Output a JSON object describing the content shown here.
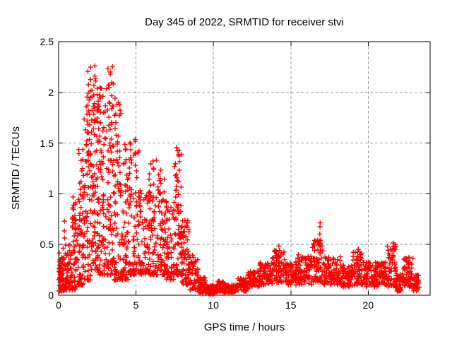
{
  "chart_data": {
    "type": "scatter",
    "title": "Day 345 of 2022, SRMTID for receiver stvi",
    "xlabel": "GPS time / hours",
    "ylabel": "SRMTID / TECUs",
    "xlim": [
      0,
      24
    ],
    "ylim": [
      0,
      2.5
    ],
    "xtick_values": [
      0,
      5,
      10,
      15,
      20
    ],
    "xtick_labels": [
      "0",
      "5",
      "10",
      "15",
      "20"
    ],
    "ytick_values": [
      0,
      0.5,
      1,
      1.5,
      2,
      2.5
    ],
    "ytick_labels": [
      "0",
      "0.5",
      "1",
      "1.5",
      "2",
      "2.5"
    ],
    "grid": true,
    "legend": "none",
    "marker": "+",
    "marker_color": "#ff0000",
    "grid_color": "#969696",
    "frame_color": "#000000",
    "background_color": "#ffffff",
    "series_name": "SRMTID",
    "data_end_hour": 23.3,
    "peak_value": 2.25,
    "peak_hour": 2.2,
    "segments": [
      {
        "x0": 0.0,
        "x1": 0.35,
        "lo": 0.04,
        "hi": 0.42,
        "n": 50,
        "skew": 1.6
      },
      {
        "x0": 0.05,
        "x1": 0.25,
        "lo": 0.12,
        "hi": 0.32,
        "n": 15,
        "skew": 1.0
      },
      {
        "x0": 0.35,
        "x1": 0.85,
        "lo": 0.05,
        "hi": 0.5,
        "n": 55,
        "skew": 1.6
      },
      {
        "x0": 0.85,
        "x1": 1.25,
        "lo": 0.05,
        "hi": 0.95,
        "n": 55,
        "skew": 1.8
      },
      {
        "x0": 1.25,
        "x1": 1.65,
        "lo": 0.1,
        "hi": 1.45,
        "n": 55,
        "skew": 1.9
      },
      {
        "x0": 1.65,
        "x1": 2.05,
        "lo": 0.15,
        "hi": 2.1,
        "n": 60,
        "skew": 2.2
      },
      {
        "x0": 2.05,
        "x1": 2.55,
        "lo": 0.25,
        "hi": 2.25,
        "n": 75,
        "skew": 1.9
      },
      {
        "x0": 2.55,
        "x1": 3.05,
        "lo": 0.2,
        "hi": 2.05,
        "n": 70,
        "skew": 2.0
      },
      {
        "x0": 3.05,
        "x1": 3.55,
        "lo": 0.2,
        "hi": 2.25,
        "n": 70,
        "skew": 2.1
      },
      {
        "x0": 3.55,
        "x1": 4.05,
        "lo": 0.15,
        "hi": 1.9,
        "n": 65,
        "skew": 2.1
      },
      {
        "x0": 4.05,
        "x1": 4.6,
        "lo": 0.15,
        "hi": 1.5,
        "n": 65,
        "skew": 1.9
      },
      {
        "x0": 4.6,
        "x1": 5.2,
        "lo": 0.2,
        "hi": 1.52,
        "n": 65,
        "skew": 2.0
      },
      {
        "x0": 5.2,
        "x1": 5.8,
        "lo": 0.2,
        "hi": 1.05,
        "n": 60,
        "skew": 1.7
      },
      {
        "x0": 5.8,
        "x1": 6.35,
        "lo": 0.2,
        "hi": 1.35,
        "n": 60,
        "skew": 1.9
      },
      {
        "x0": 6.35,
        "x1": 6.9,
        "lo": 0.2,
        "hi": 1.25,
        "n": 60,
        "skew": 1.8
      },
      {
        "x0": 6.9,
        "x1": 7.45,
        "lo": 0.15,
        "hi": 0.95,
        "n": 60,
        "skew": 1.6
      },
      {
        "x0": 7.45,
        "x1": 7.95,
        "lo": 0.2,
        "hi": 1.45,
        "n": 65,
        "skew": 1.9
      },
      {
        "x0": 7.95,
        "x1": 8.45,
        "lo": 0.1,
        "hi": 0.75,
        "n": 60,
        "skew": 1.5
      },
      {
        "x0": 8.45,
        "x1": 9.0,
        "lo": 0.05,
        "hi": 0.4,
        "n": 55,
        "skew": 1.4
      },
      {
        "x0": 9.0,
        "x1": 9.6,
        "lo": 0.02,
        "hi": 0.18,
        "n": 55,
        "skew": 1.2
      },
      {
        "x0": 9.6,
        "x1": 10.2,
        "lo": 0.01,
        "hi": 0.1,
        "n": 55,
        "skew": 1.0
      },
      {
        "x0": 10.2,
        "x1": 10.7,
        "lo": 0.03,
        "hi": 0.14,
        "n": 50,
        "skew": 1.0
      },
      {
        "x0": 10.7,
        "x1": 11.5,
        "lo": 0.02,
        "hi": 0.1,
        "n": 65,
        "skew": 1.0
      },
      {
        "x0": 11.5,
        "x1": 12.2,
        "lo": 0.04,
        "hi": 0.17,
        "n": 60,
        "skew": 1.0
      },
      {
        "x0": 12.2,
        "x1": 13.0,
        "lo": 0.07,
        "hi": 0.24,
        "n": 65,
        "skew": 1.0
      },
      {
        "x0": 13.0,
        "x1": 13.8,
        "lo": 0.1,
        "hi": 0.33,
        "n": 70,
        "skew": 1.1
      },
      {
        "x0": 13.8,
        "x1": 14.6,
        "lo": 0.12,
        "hi": 0.45,
        "n": 70,
        "skew": 1.2
      },
      {
        "x0": 14.6,
        "x1": 15.4,
        "lo": 0.1,
        "hi": 0.33,
        "n": 70,
        "skew": 1.1
      },
      {
        "x0": 15.4,
        "x1": 16.4,
        "lo": 0.1,
        "hi": 0.4,
        "n": 85,
        "skew": 1.2
      },
      {
        "x0": 16.4,
        "x1": 17.1,
        "lo": 0.12,
        "hi": 0.55,
        "n": 65,
        "skew": 1.4
      },
      {
        "x0": 17.1,
        "x1": 18.2,
        "lo": 0.1,
        "hi": 0.38,
        "n": 90,
        "skew": 1.2
      },
      {
        "x0": 18.2,
        "x1": 19.0,
        "lo": 0.08,
        "hi": 0.3,
        "n": 70,
        "skew": 1.1
      },
      {
        "x0": 19.0,
        "x1": 19.6,
        "lo": 0.1,
        "hi": 0.45,
        "n": 55,
        "skew": 1.3
      },
      {
        "x0": 19.6,
        "x1": 20.6,
        "lo": 0.08,
        "hi": 0.33,
        "n": 85,
        "skew": 1.1
      },
      {
        "x0": 20.6,
        "x1": 21.2,
        "lo": 0.1,
        "hi": 0.35,
        "n": 55,
        "skew": 1.1
      },
      {
        "x0": 21.2,
        "x1": 21.8,
        "lo": 0.08,
        "hi": 0.5,
        "n": 55,
        "skew": 1.3
      },
      {
        "x0": 21.8,
        "x1": 22.3,
        "lo": 0.04,
        "hi": 0.22,
        "n": 45,
        "skew": 1.1
      },
      {
        "x0": 22.3,
        "x1": 22.9,
        "lo": 0.08,
        "hi": 0.38,
        "n": 55,
        "skew": 1.3
      },
      {
        "x0": 22.9,
        "x1": 23.3,
        "lo": 0.04,
        "hi": 0.2,
        "n": 40,
        "skew": 1.2
      }
    ],
    "spikes": [
      {
        "x": 0.33,
        "y0": 0.3,
        "y1": 0.72,
        "n": 6
      },
      {
        "x": 0.95,
        "y0": 0.4,
        "y1": 0.95,
        "n": 7
      },
      {
        "x": 1.4,
        "y0": 0.5,
        "y1": 1.1,
        "n": 6
      },
      {
        "x": 1.55,
        "y0": 0.8,
        "y1": 1.45,
        "n": 6
      },
      {
        "x": 1.8,
        "y0": 1.2,
        "y1": 1.95,
        "n": 8
      },
      {
        "x": 1.95,
        "y0": 1.4,
        "y1": 2.2,
        "n": 7
      },
      {
        "x": 2.1,
        "y0": 1.5,
        "y1": 2.25,
        "n": 8
      },
      {
        "x": 2.3,
        "y0": 1.6,
        "y1": 2.25,
        "n": 8
      },
      {
        "x": 2.45,
        "y0": 1.3,
        "y1": 2.1,
        "n": 7
      },
      {
        "x": 2.7,
        "y0": 1.2,
        "y1": 2.05,
        "n": 8
      },
      {
        "x": 2.9,
        "y0": 1.0,
        "y1": 1.95,
        "n": 7
      },
      {
        "x": 3.3,
        "y0": 1.2,
        "y1": 2.2,
        "n": 8
      },
      {
        "x": 3.45,
        "y0": 1.4,
        "y1": 2.25,
        "n": 7
      },
      {
        "x": 3.6,
        "y0": 1.0,
        "y1": 1.95,
        "n": 7
      },
      {
        "x": 3.75,
        "y0": 0.9,
        "y1": 1.9,
        "n": 6
      },
      {
        "x": 4.4,
        "y0": 0.8,
        "y1": 1.45,
        "n": 6
      },
      {
        "x": 4.6,
        "y0": 0.9,
        "y1": 1.5,
        "n": 5
      },
      {
        "x": 5.0,
        "y0": 0.9,
        "y1": 1.52,
        "n": 6
      },
      {
        "x": 5.9,
        "y0": 0.7,
        "y1": 1.3,
        "n": 5
      },
      {
        "x": 6.1,
        "y0": 0.6,
        "y1": 1.25,
        "n": 5
      },
      {
        "x": 6.6,
        "y0": 0.7,
        "y1": 1.22,
        "n": 6
      },
      {
        "x": 7.6,
        "y0": 0.6,
        "y1": 1.45,
        "n": 7
      },
      {
        "x": 7.75,
        "y0": 0.5,
        "y1": 1.3,
        "n": 6
      },
      {
        "x": 8.1,
        "y0": 0.3,
        "y1": 0.75,
        "n": 5
      },
      {
        "x": 14.2,
        "y0": 0.25,
        "y1": 0.47,
        "n": 5
      },
      {
        "x": 16.85,
        "y0": 0.35,
        "y1": 0.72,
        "n": 7
      },
      {
        "x": 19.3,
        "y0": 0.25,
        "y1": 0.45,
        "n": 4
      },
      {
        "x": 21.6,
        "y0": 0.3,
        "y1": 0.52,
        "n": 5
      },
      {
        "x": 22.6,
        "y0": 0.2,
        "y1": 0.38,
        "n": 4
      }
    ]
  }
}
